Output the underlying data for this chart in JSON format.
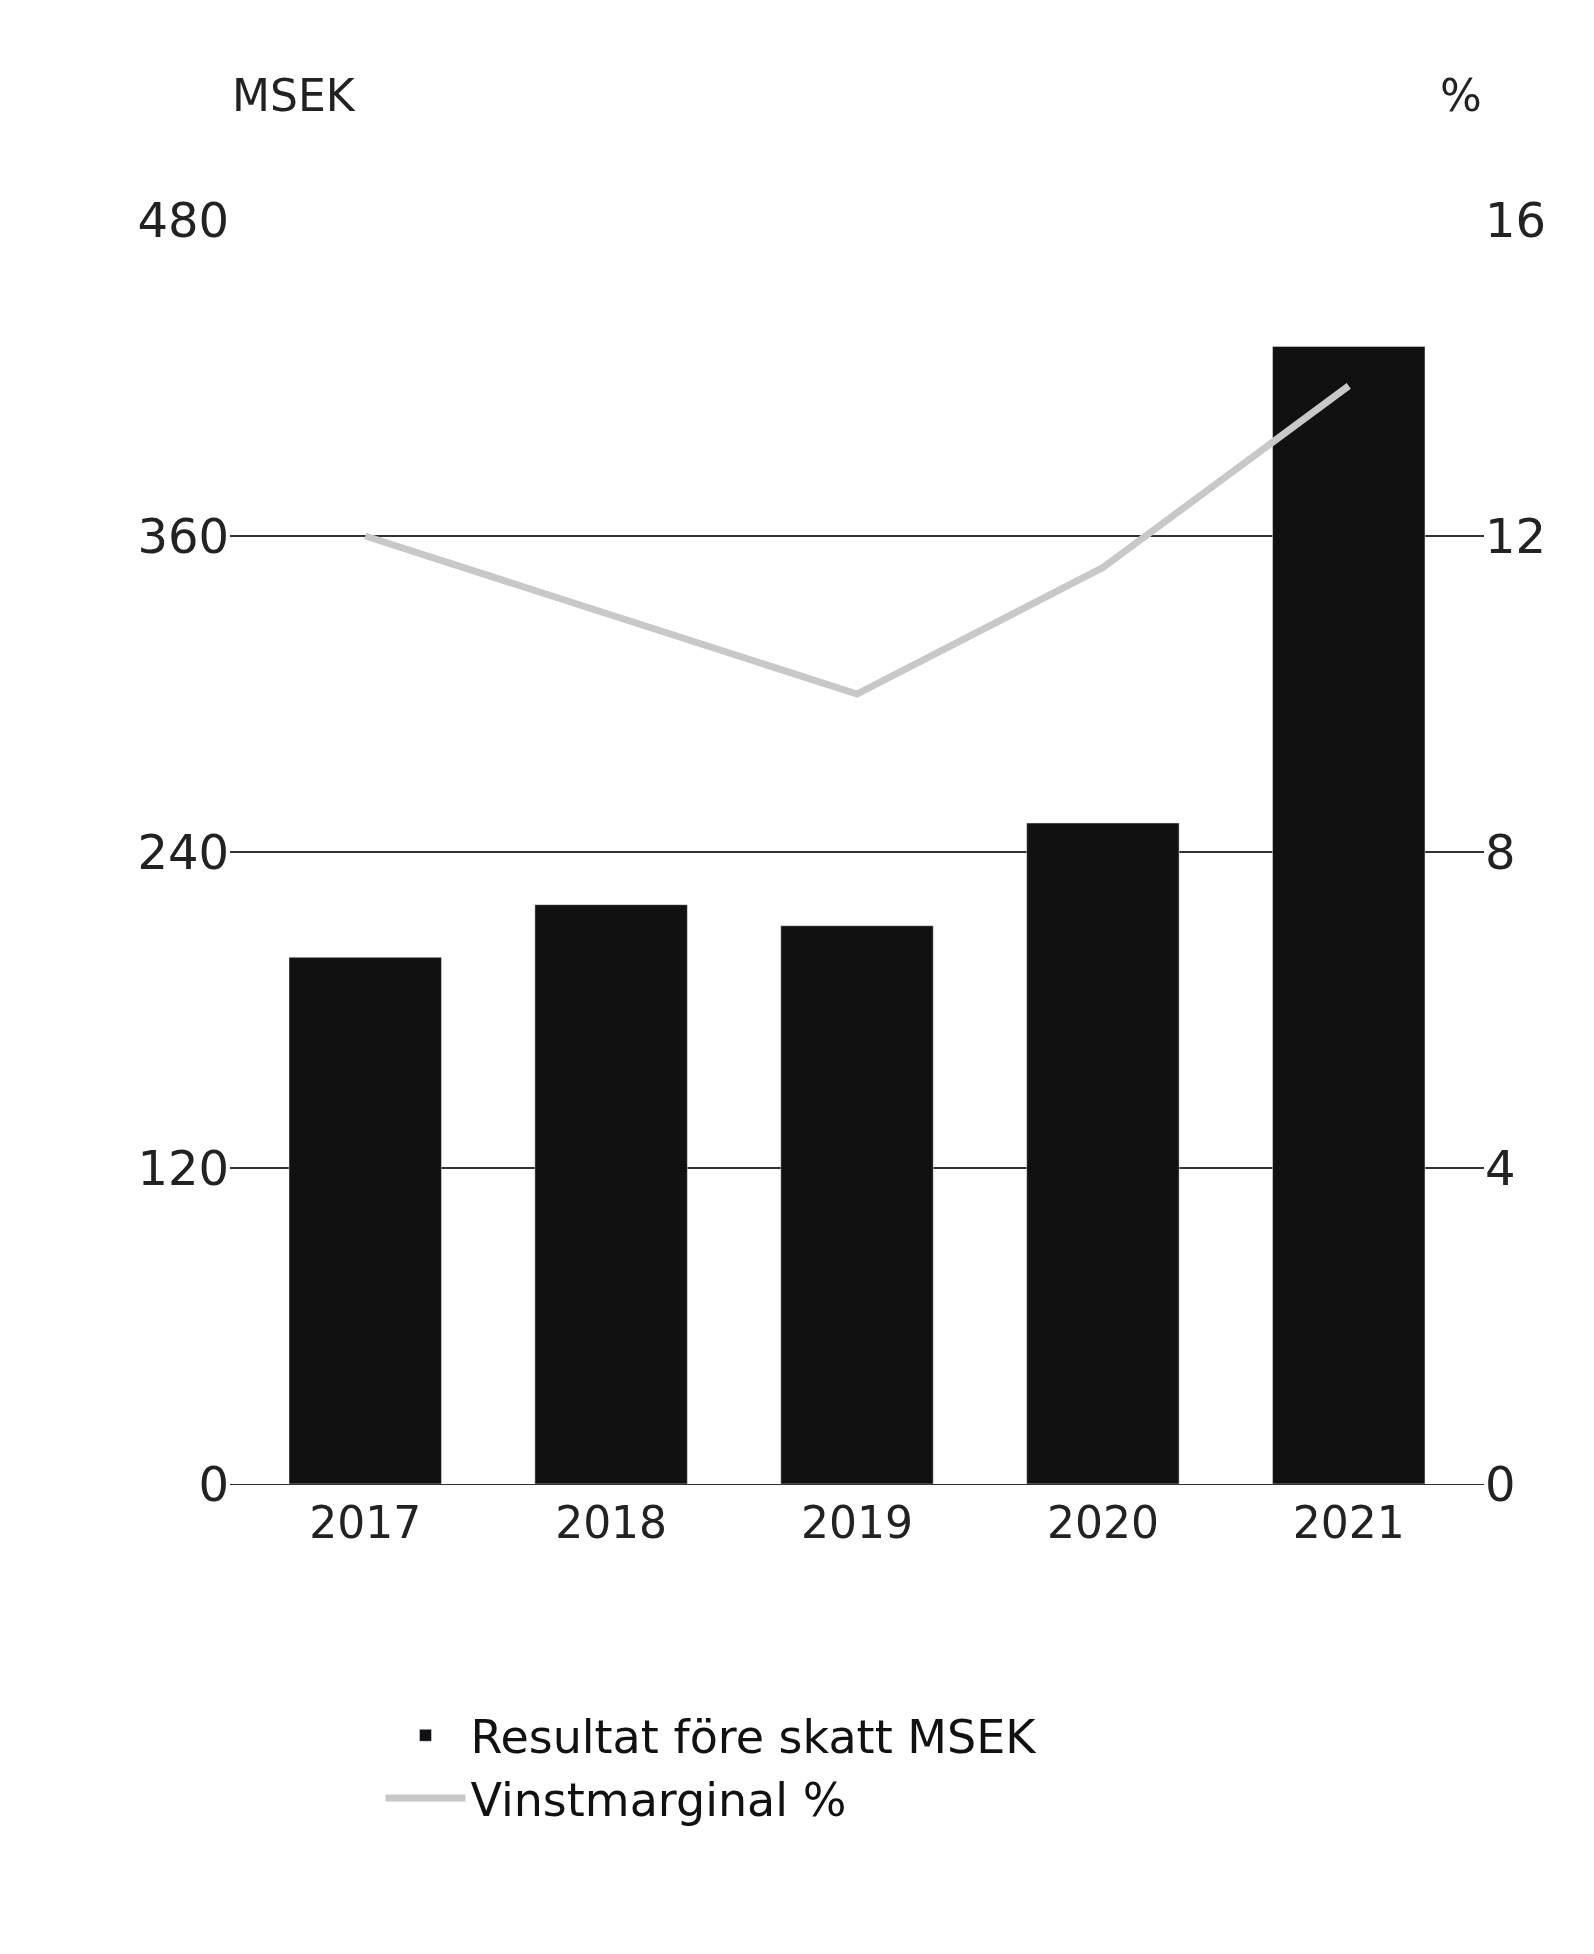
{
  "chart_data": {
    "type": "bar",
    "categories": [
      "2017",
      "2018",
      "2019",
      "2020",
      "2021"
    ],
    "ylabel": "MSEK",
    "y2label": "%",
    "series": [
      {
        "name": "Resultat före skatt MSEK",
        "color": "#111111",
        "values": [
          200,
          220,
          212,
          251,
          432
        ]
      },
      {
        "name": "Vinstmarginal %",
        "type": "line",
        "axis": "y2",
        "color": "#c8c8c8",
        "values": [
          12.0,
          11.0,
          10.0,
          11.6,
          13.9
        ]
      }
    ],
    "ylim": [
      0,
      480
    ],
    "yticks": [
      0,
      120,
      240,
      360,
      480
    ],
    "y2lim": [
      0,
      16
    ],
    "y2ticks": [
      0,
      4,
      8,
      12,
      16
    ],
    "grid": "y",
    "legend": "bottom",
    "marker": "none",
    "line_style": "solid"
  }
}
